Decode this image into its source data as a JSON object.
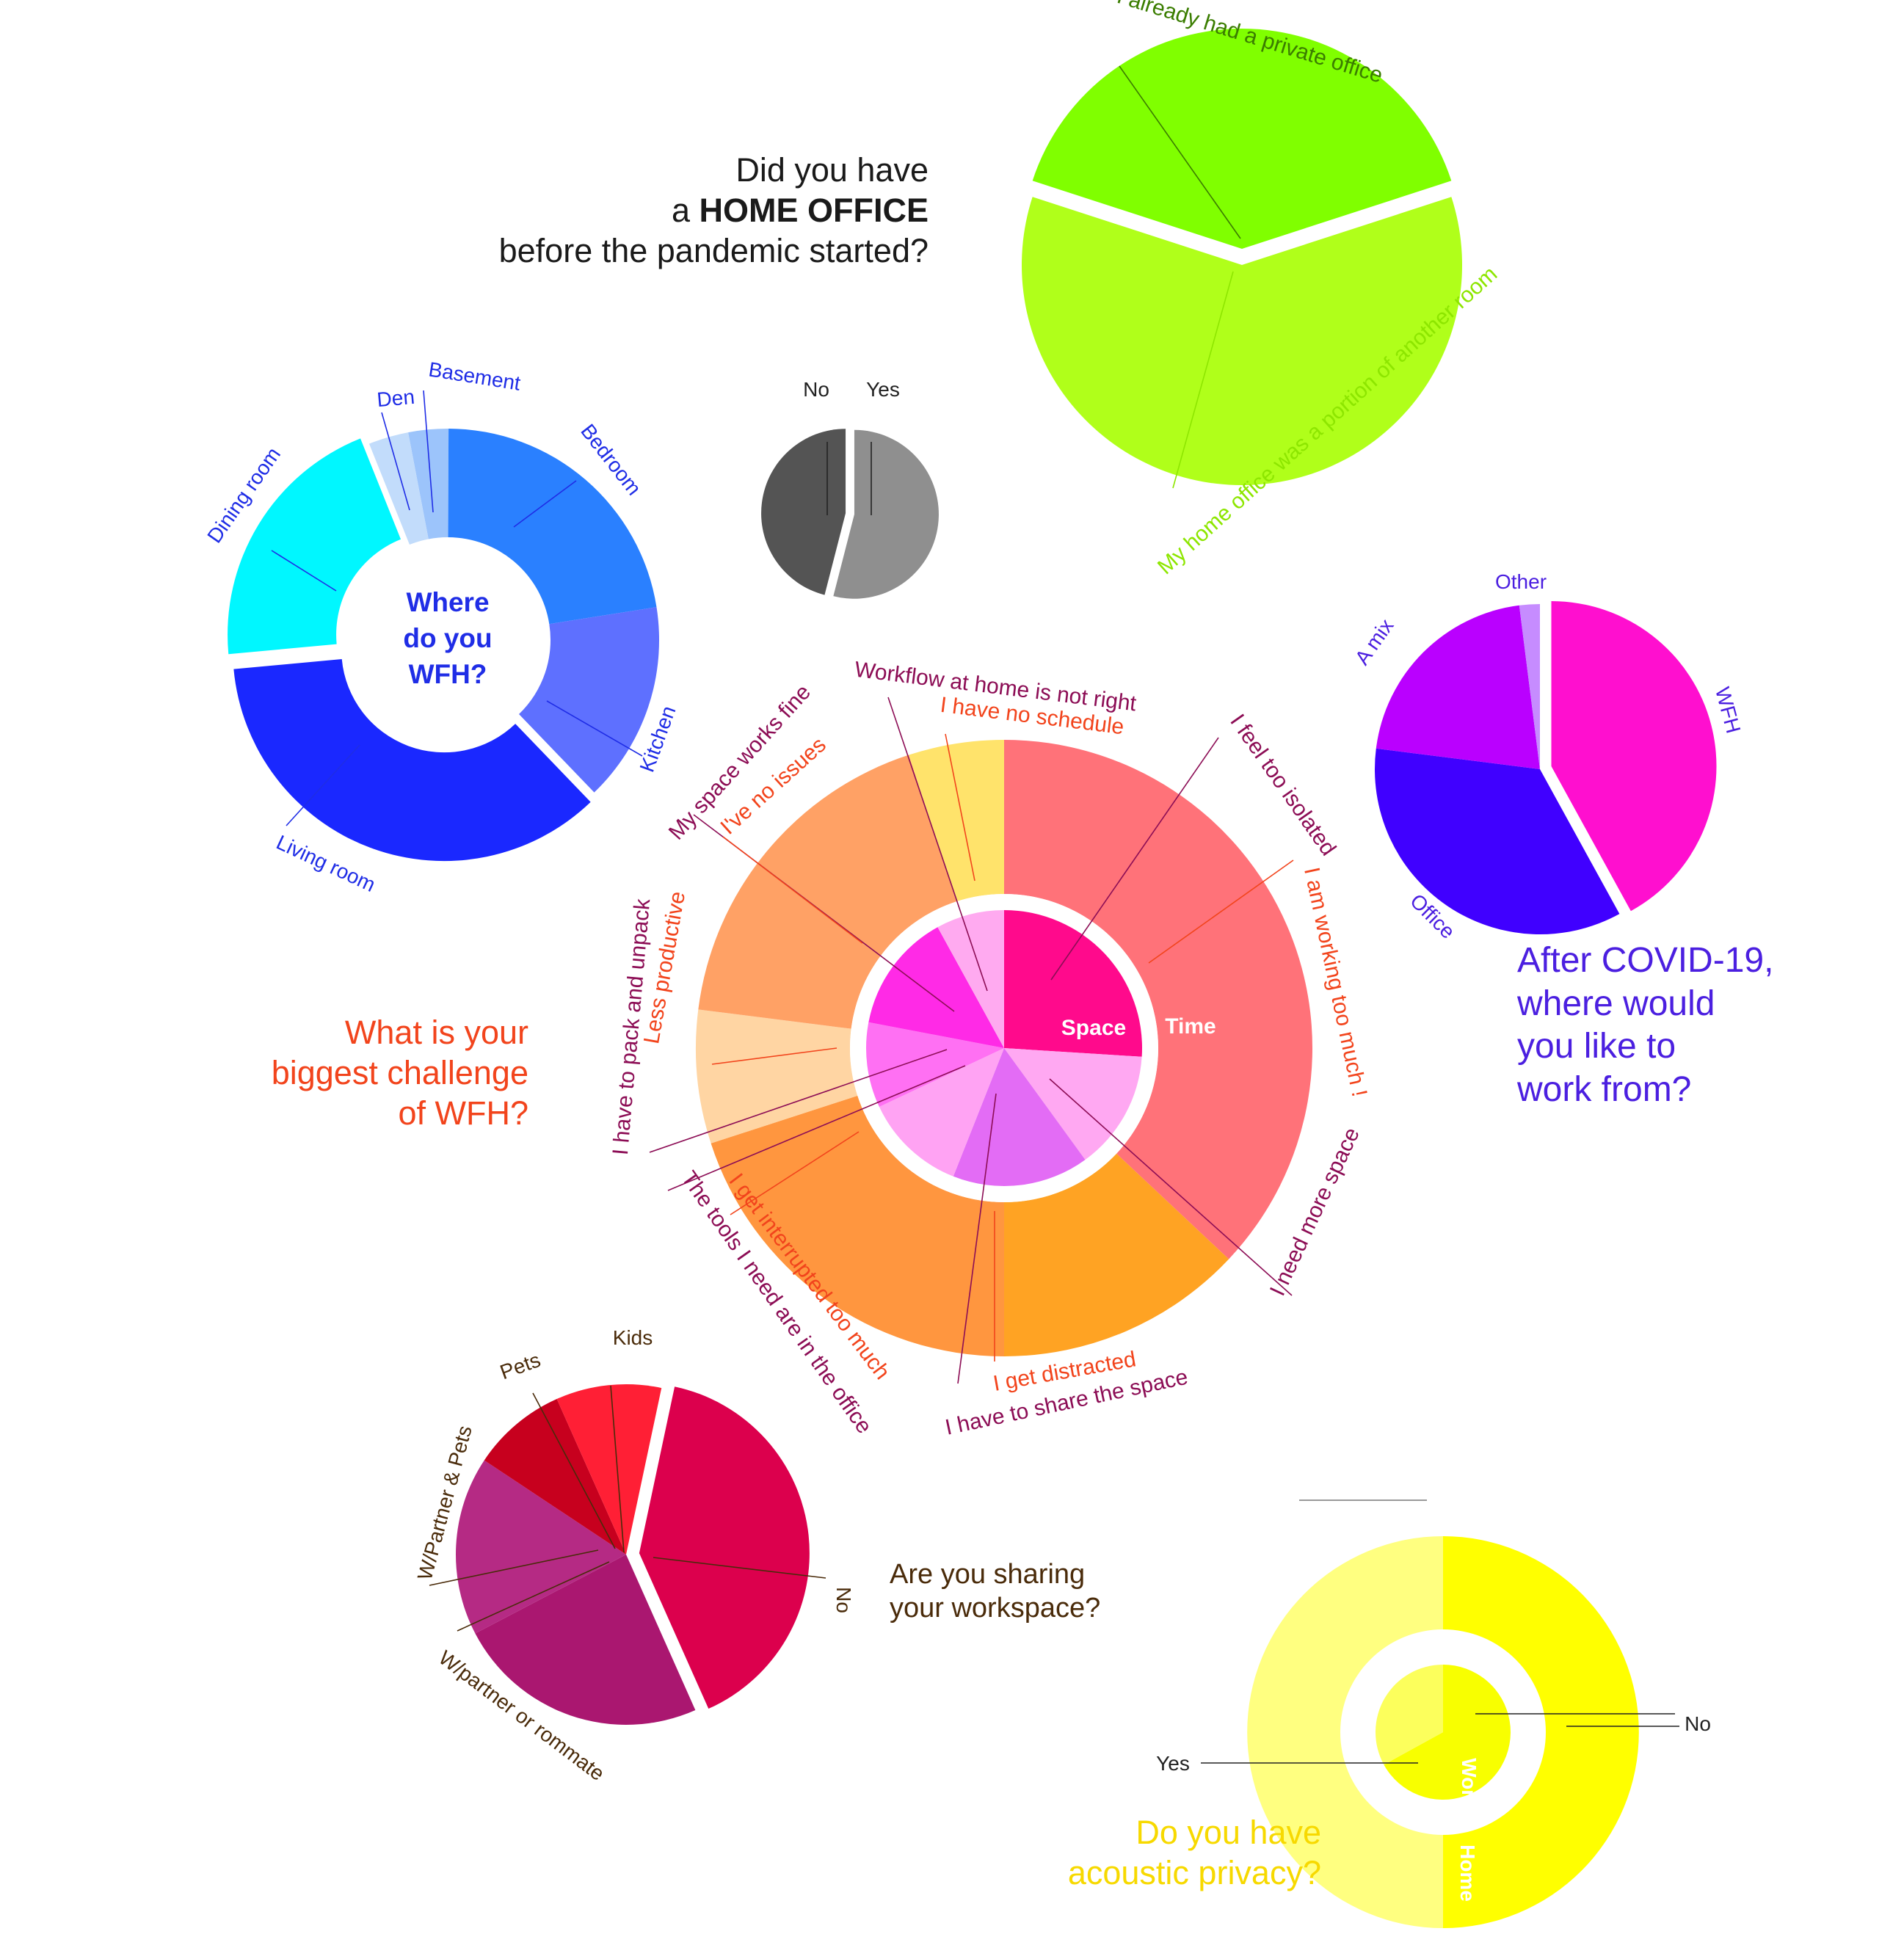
{
  "questions": {
    "home_office": {
      "line1": "Did you have",
      "line2_pre": "a ",
      "line2_bold": "HOME OFFICE",
      "line3": "before the pandemic started?"
    },
    "where": {
      "line1": "Where",
      "line2": "do you",
      "line3": "WFH?"
    },
    "challenge": {
      "line1": "What is your",
      "line2": "biggest challenge",
      "line3": "of WFH?"
    },
    "future": {
      "line1": "After COVID-19,",
      "line2": "where would",
      "line3": "you like to",
      "line4": "work from?"
    },
    "sharing": {
      "line1": "Are you sharing",
      "line2": "your workspace?"
    },
    "privacy": {
      "line1": "Do you have",
      "line2": "acoustic privacy?"
    }
  },
  "chart_data": [
    {
      "id": "home_office_yes_no",
      "type": "pie",
      "title": "Did you have a HOME OFFICE before the pandemic started?",
      "categories": [
        "No",
        "Yes"
      ],
      "values": [
        46,
        54
      ],
      "colors": [
        "#545454",
        "#8f8f8f"
      ]
    },
    {
      "id": "home_office_type",
      "type": "pie",
      "categories": [
        "I already had a private office",
        "My home office was a portion of another room"
      ],
      "values": [
        40,
        60
      ],
      "colors": [
        "#80ff00",
        "#b0ff1a"
      ],
      "label_colors": [
        "#3a7d00",
        "#8de600"
      ]
    },
    {
      "id": "wfh_location",
      "type": "pie",
      "title": "Where do you WFH?",
      "categories": [
        "Basement",
        "Bedroom",
        "Kitchen",
        "Living room",
        "Dining room",
        "Den"
      ],
      "values": [
        3,
        22,
        15,
        35,
        20,
        3
      ],
      "colors": [
        "#9cc4fb",
        "#2a80ff",
        "#5e70ff",
        "#1a28ff",
        "#00f7ff",
        "#c2dcfb"
      ]
    },
    {
      "id": "wfh_challenge",
      "type": "pie",
      "title": "What is your biggest challenge of WFH?",
      "inner_labels": [
        "Space",
        "Time"
      ],
      "inner": {
        "categories": [
          "I feel too isolated",
          "I need more space",
          "I have to share the space",
          "The tools I need are in the office",
          "I have to pack and unpack",
          "My space works fine",
          "Workflow at home is not right"
        ],
        "values": [
          26,
          14,
          16,
          12,
          10,
          14,
          8
        ],
        "colors": [
          "#ff0a8c",
          "#ffa8f2",
          "#e36cf5",
          "#ffa3f3",
          "#ff70f3",
          "#ff2ae6",
          "#ffaaf0"
        ]
      },
      "outer": {
        "categories": [
          "I am working too much !",
          "I get distracted",
          "I get interrupted too much",
          "Less productive",
          "I've no issues",
          "I have no schedule"
        ],
        "values": [
          37,
          13,
          20,
          7,
          18,
          5
        ],
        "colors": [
          "#ff7279",
          "#ffa323",
          "#ff963f",
          "#ffd5a3",
          "#ffa165",
          "#ffe36b"
        ]
      }
    },
    {
      "id": "future_location",
      "type": "pie",
      "title": "After COVID-19, where would you like to work from?",
      "categories": [
        "WFH",
        "Office",
        "A mix",
        "Other"
      ],
      "values": [
        42,
        35,
        21,
        2
      ],
      "colors": [
        "#ff0fcf",
        "#4000ff",
        "#ba00ff",
        "#c68cff"
      ]
    },
    {
      "id": "workspace_sharing",
      "type": "pie",
      "title": "Are you sharing your workspace?",
      "categories": [
        "No",
        "W/partner or rommate",
        "W/Partner & Pets",
        "Pets",
        "Kids"
      ],
      "values": [
        40,
        24,
        17,
        9,
        10
      ],
      "colors": [
        "#dc004d",
        "#aa1770",
        "#b52a84",
        "#c7001e",
        "#ff1f35"
      ]
    },
    {
      "id": "acoustic_privacy",
      "type": "pie",
      "title": "Do you have acoustic privacy?",
      "inner_label": "Work",
      "outer_label": "Home",
      "inner": {
        "categories": [
          "No",
          "Yes"
        ],
        "values": [
          67,
          33
        ],
        "colors": [
          "#f8ff00",
          "#fcff5c"
        ]
      },
      "outer": {
        "categories": [
          "No",
          "Yes"
        ],
        "values": [
          50,
          50
        ],
        "colors": [
          "#ffff00",
          "#ffff80"
        ]
      }
    }
  ]
}
